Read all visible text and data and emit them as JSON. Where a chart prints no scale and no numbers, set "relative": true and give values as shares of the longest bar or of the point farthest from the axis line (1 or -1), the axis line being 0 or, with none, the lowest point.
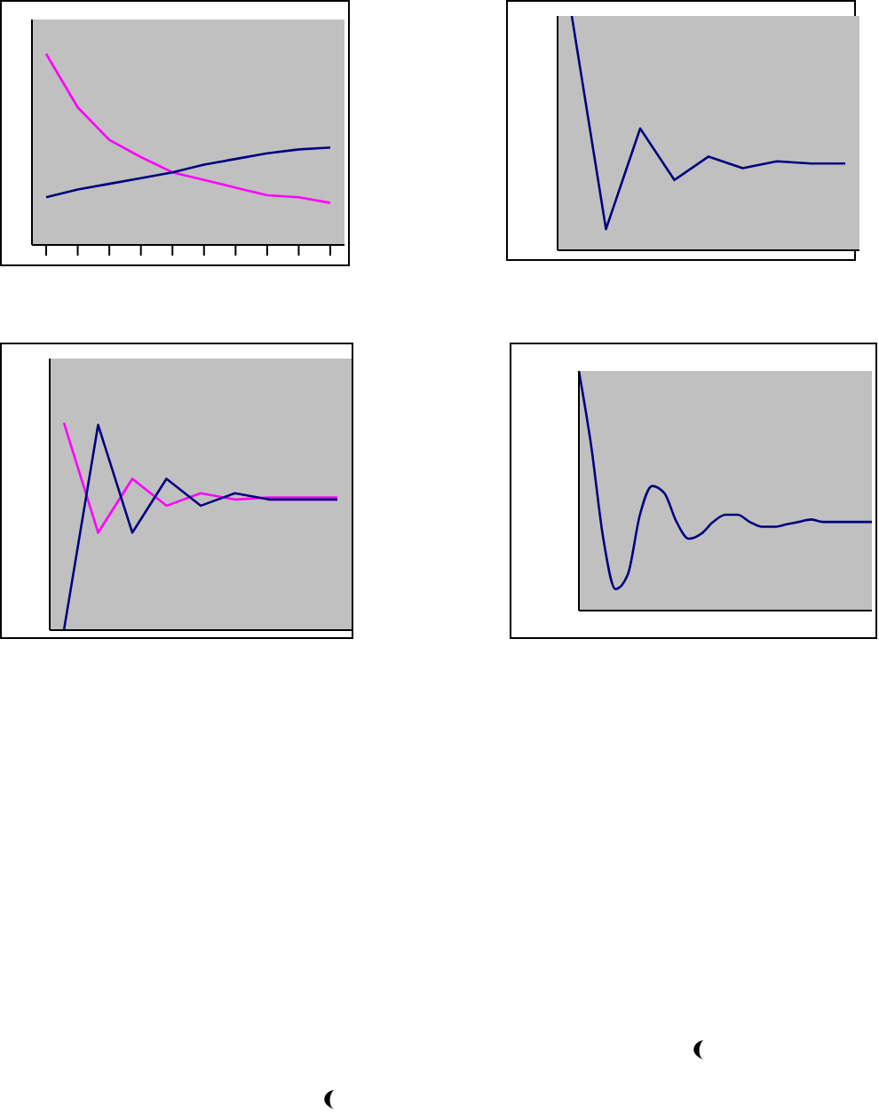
{
  "chart_data": [
    {
      "type": "line",
      "relative": true,
      "marker": "none",
      "categories": [
        null,
        null,
        null,
        null,
        null,
        null,
        null,
        null,
        null,
        null
      ],
      "series": [
        {
          "color": "#ff00ff",
          "values": [
            1,
            0.72,
            0.55,
            0.46,
            0.38,
            0.34,
            0.3,
            0.26,
            0.25,
            0.22
          ]
        },
        {
          "color": "#000080",
          "values": [
            0.25,
            0.29,
            0.32,
            0.35,
            0.38,
            0.42,
            0.45,
            0.48,
            0.5,
            0.51
          ]
        }
      ]
    },
    {
      "type": "line",
      "relative": true,
      "marker": "none",
      "categories": [
        null,
        null,
        null,
        null,
        null,
        null,
        null,
        null,
        null
      ],
      "series": [
        {
          "color": "#000080",
          "values": [
            1,
            0.09,
            0.52,
            0.3,
            0.4,
            0.35,
            0.38,
            0.37,
            0.37
          ]
        }
      ]
    },
    {
      "type": "line",
      "relative": true,
      "marker": "none",
      "categories": [
        null,
        null,
        null,
        null,
        null,
        null,
        null,
        null,
        null
      ],
      "series": [
        {
          "color": "#ff00ff",
          "values": [
            1,
            0.47,
            0.73,
            0.6,
            0.66,
            0.63,
            0.64,
            0.64,
            0.64
          ]
        },
        {
          "color": "#000080",
          "values": [
            0,
            0.99,
            0.47,
            0.73,
            0.6,
            0.66,
            0.63,
            0.63,
            0.63
          ]
        }
      ]
    },
    {
      "type": "line",
      "relative": true,
      "marker": "none",
      "categories": [
        null,
        null,
        null,
        null,
        null,
        null,
        null,
        null,
        null,
        null,
        null,
        null,
        null,
        null,
        null,
        null,
        null,
        null,
        null,
        null,
        null,
        null,
        null,
        null,
        null
      ],
      "series": [
        {
          "color": "#000080",
          "values": [
            1,
            0.69,
            0.3,
            0.09,
            0.15,
            0.4,
            0.52,
            0.49,
            0.37,
            0.3,
            0.32,
            0.37,
            0.4,
            0.4,
            0.37,
            0.35,
            0.35,
            0.36,
            0.37,
            0.38,
            0.37,
            0.37,
            0.37,
            0.37,
            0.37
          ]
        }
      ]
    }
  ]
}
